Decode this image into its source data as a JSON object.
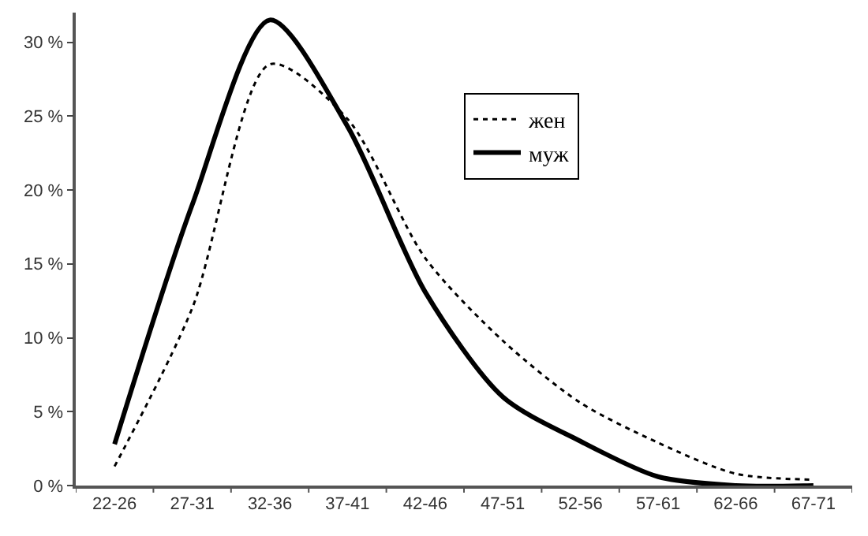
{
  "chart_data": {
    "type": "line",
    "categories": [
      "22-26",
      "27-31",
      "32-36",
      "37-41",
      "42-46",
      "47-51",
      "52-56",
      "57-61",
      "62-66",
      "67-71"
    ],
    "series": [
      {
        "name": "жен",
        "color": "#000000",
        "line_style": "dotted",
        "values": [
          1.3,
          12,
          28.5,
          24.8,
          15.4,
          9.8,
          5.6,
          2.9,
          0.8,
          0.4
        ]
      },
      {
        "name": "муж",
        "color": "#000000",
        "line_style": "solid",
        "values": [
          2.8,
          19,
          31.5,
          24.3,
          13.1,
          6,
          3,
          0.6,
          0,
          0
        ]
      }
    ],
    "ylim": [
      0,
      32
    ],
    "yticks": [
      {
        "value": 0,
        "label": "0 %"
      },
      {
        "value": 5,
        "label": "5 %"
      },
      {
        "value": 10,
        "label": "10 %"
      },
      {
        "value": 15,
        "label": "15 %"
      },
      {
        "value": 20,
        "label": "20 %"
      },
      {
        "value": 25,
        "label": "25 %"
      },
      {
        "value": 30,
        "label": "30 %"
      }
    ],
    "grid": false,
    "legend": "top right",
    "marker": "none"
  }
}
